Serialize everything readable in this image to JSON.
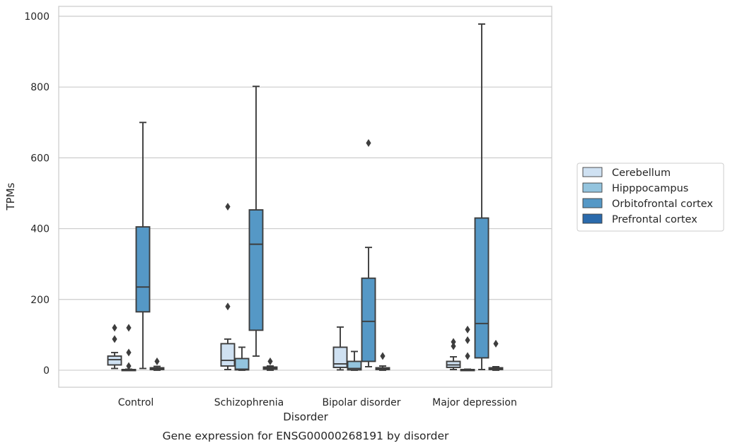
{
  "chart_data": {
    "type": "box",
    "caption": "Gene expression for ENSG00000268191 by disorder",
    "xlabel": "Disorder",
    "ylabel": "TPMs",
    "ylim": [
      -48,
      1028
    ],
    "yticks": [
      0,
      200,
      400,
      600,
      800,
      1000
    ],
    "grid": "horizontal",
    "legend_position": "right",
    "categories": [
      "Control",
      "Schizophrenia",
      "Bipolar disorder",
      "Major depression"
    ],
    "series": [
      {
        "name": "Cerebellum",
        "color": "#cfe1f2",
        "boxes": [
          {
            "whisker_low": 5,
            "q1": 15,
            "median": 30,
            "q3": 40,
            "whisker_high": 50,
            "outliers": [
              88,
              120
            ]
          },
          {
            "whisker_low": 2,
            "q1": 12,
            "median": 28,
            "q3": 75,
            "whisker_high": 88,
            "outliers": [
              180,
              462
            ]
          },
          {
            "whisker_low": 1,
            "q1": 8,
            "median": 18,
            "q3": 65,
            "whisker_high": 122,
            "outliers": []
          },
          {
            "whisker_low": 2,
            "q1": 8,
            "median": 15,
            "q3": 25,
            "whisker_high": 38,
            "outliers": [
              68,
              80
            ]
          }
        ]
      },
      {
        "name": "Hipppocampus",
        "color": "#93c4de",
        "boxes": [
          {
            "whisker_low": 0,
            "q1": 0,
            "median": 1,
            "q3": 2,
            "whisker_high": 3,
            "outliers": [
              12,
              50,
              120
            ]
          },
          {
            "whisker_low": 0,
            "q1": 1,
            "median": 3,
            "q3": 33,
            "whisker_high": 65,
            "outliers": []
          },
          {
            "whisker_low": 0,
            "q1": 1,
            "median": 5,
            "q3": 25,
            "whisker_high": 53,
            "outliers": []
          },
          {
            "whisker_low": 0,
            "q1": 0,
            "median": 1,
            "q3": 2,
            "whisker_high": 3,
            "outliers": [
              40,
              85,
              115
            ]
          }
        ]
      },
      {
        "name": "Orbitofrontal cortex",
        "color": "#5598c6",
        "boxes": [
          {
            "whisker_low": 5,
            "q1": 165,
            "median": 235,
            "q3": 405,
            "whisker_high": 700,
            "outliers": []
          },
          {
            "whisker_low": 40,
            "q1": 113,
            "median": 356,
            "q3": 453,
            "whisker_high": 802,
            "outliers": []
          },
          {
            "whisker_low": 10,
            "q1": 25,
            "median": 138,
            "q3": 260,
            "whisker_high": 347,
            "outliers": [
              642
            ]
          },
          {
            "whisker_low": 2,
            "q1": 35,
            "median": 132,
            "q3": 430,
            "whisker_high": 978,
            "outliers": []
          }
        ]
      },
      {
        "name": "Prefrontal cortex",
        "color": "#2a6aac",
        "boxes": [
          {
            "whisker_low": 0,
            "q1": 2,
            "median": 4,
            "q3": 7,
            "whisker_high": 11,
            "outliers": [
              25
            ]
          },
          {
            "whisker_low": 0,
            "q1": 3,
            "median": 6,
            "q3": 9,
            "whisker_high": 12,
            "outliers": [
              25
            ]
          },
          {
            "whisker_low": 0,
            "q1": 2,
            "median": 4,
            "q3": 7,
            "whisker_high": 12,
            "outliers": [
              40
            ]
          },
          {
            "whisker_low": 0,
            "q1": 2,
            "median": 4,
            "q3": 7,
            "whisker_high": 10,
            "outliers": [
              75
            ]
          }
        ]
      }
    ]
  }
}
